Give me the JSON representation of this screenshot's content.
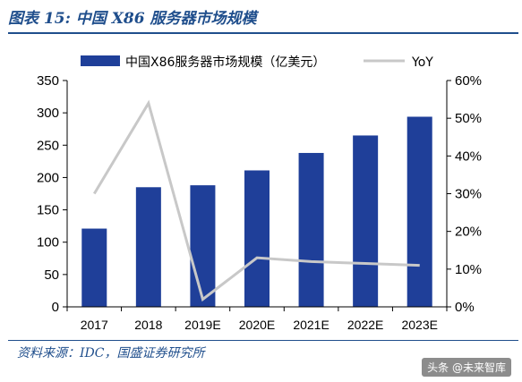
{
  "figure": {
    "title": "图表 15:  中国 X86 服务器市场规模",
    "source": "资料来源：IDC，国盛证券研究所",
    "watermark": "头条 @未来智库"
  },
  "colors": {
    "bar": "#1f3f99",
    "line": "#c8c8c8",
    "title": "#1f4e8c"
  },
  "chart_data": {
    "type": "bar",
    "title": "",
    "xlabel": "",
    "ylabel": "",
    "categories": [
      "2017",
      "2018",
      "2019E",
      "2020E",
      "2021E",
      "2022E",
      "2023E"
    ],
    "series": [
      {
        "name": "中国X86服务器市场规模（亿美元）",
        "type": "bar",
        "axis": "left",
        "values": [
          121,
          185,
          188,
          211,
          238,
          265,
          294
        ]
      },
      {
        "name": "YoY",
        "type": "line",
        "axis": "right",
        "values": [
          30,
          54,
          2,
          13,
          12,
          11.5,
          11
        ]
      }
    ],
    "ylim": [
      0,
      350
    ],
    "y_ticks": [
      0,
      50,
      100,
      150,
      200,
      250,
      300,
      350
    ],
    "y2lim": [
      0,
      60
    ],
    "y2_ticks": [
      "0%",
      "10%",
      "20%",
      "30%",
      "40%",
      "50%",
      "60%"
    ],
    "grid": false,
    "legend_position": "top"
  }
}
